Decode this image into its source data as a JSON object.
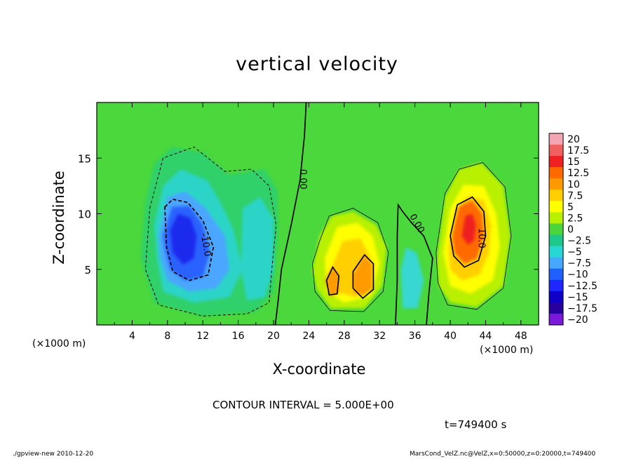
{
  "chart_data": {
    "type": "heatmap",
    "title": "vertical velocity",
    "xlabel": "X-coordinate",
    "ylabel": "Z-coordinate",
    "x_unit_label": "(×1000 m)",
    "xlim": [
      0,
      50
    ],
    "ylim": [
      0,
      20
    ],
    "x_ticks": [
      "4",
      "8",
      "12",
      "16",
      "20",
      "24",
      "28",
      "32",
      "36",
      "40",
      "44",
      "48"
    ],
    "y_ticks": [
      "5",
      "10",
      "15"
    ],
    "contour_interval_text": "CONTOUR INTERVAL = 5.000E+00",
    "contour_labels": [
      "0.00",
      "0.00",
      "-10.0",
      "10.0"
    ],
    "colorbar": {
      "labels": [
        "20",
        "17.5",
        "15",
        "12.5",
        "10",
        "7.5",
        "5",
        "2.5",
        "0",
        "−2.5",
        "−5",
        "−7.5",
        "−10",
        "−12.5",
        "−15",
        "−17.5",
        "−20"
      ],
      "colors": [
        "#f4a6b4",
        "#f06060",
        "#ee2020",
        "#ff6a00",
        "#ff9a00",
        "#ffcf00",
        "#ffff00",
        "#b9f000",
        "#4bd43c",
        "#1ec78a",
        "#26d7d3",
        "#46a8ff",
        "#2060ff",
        "#1f27ff",
        "#1000c8",
        "#2800a0",
        "#7a19d9"
      ]
    },
    "features": [
      {
        "kind": "downdraft",
        "x": 9.5,
        "z": 9.0,
        "peak": -13
      },
      {
        "kind": "downdraft",
        "x": 12.5,
        "z": 6.0,
        "peak": -9
      },
      {
        "kind": "downdraft",
        "x": 18.5,
        "z": 7.5,
        "peak": -4
      },
      {
        "kind": "updraft",
        "x": 30.0,
        "z": 5.0,
        "peak": 11
      },
      {
        "kind": "updraft",
        "x": 26.5,
        "z": 4.0,
        "peak": 9
      },
      {
        "kind": "downdraft",
        "x": 35.5,
        "z": 4.5,
        "peak": -5
      },
      {
        "kind": "updraft",
        "x": 41.5,
        "z": 9.0,
        "peak": 16
      }
    ]
  },
  "annotations": {
    "time": "t=749400 s",
    "footer_left": "./gpview-new  2010-12-20",
    "footer_right": "MarsCond_VelZ.nc@VelZ,x=0:50000,z=0:20000,t=749400"
  }
}
